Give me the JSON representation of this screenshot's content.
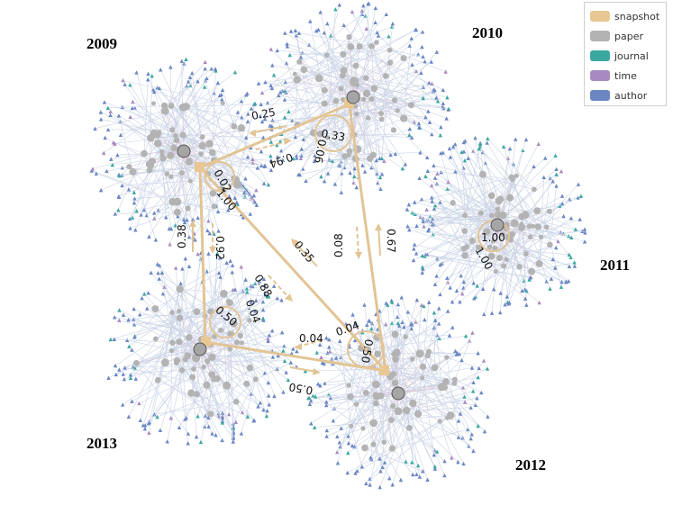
{
  "legend": {
    "items": [
      {
        "label": "snapshot",
        "color": "#e8c792"
      },
      {
        "label": "paper",
        "color": "#b3b3b3"
      },
      {
        "label": "journal",
        "color": "#3aa8a0"
      },
      {
        "label": "time",
        "color": "#a98ac0"
      },
      {
        "label": "author",
        "color": "#6a86c3"
      }
    ]
  },
  "colors": {
    "edge": "#e2c495",
    "spoke": "#c9d4e6",
    "paper": "#b3b3b3",
    "author": "#6a86c3",
    "journal": "#3aa8a0",
    "time": "#a98ac0",
    "hub": "#9a9a9a"
  },
  "years": [
    "2009",
    "2010",
    "2011",
    "2012",
    "2013"
  ],
  "edge_labels": {
    "a": "0.25",
    "b": "0.94",
    "c": "0.33",
    "d": "0.06",
    "e": "0.02",
    "f": "1.00",
    "g": "0.38",
    "h": "0.92",
    "i": "0.35",
    "j": "0.88",
    "k": "0.08",
    "l": "0.67",
    "m": "1.00",
    "n": "1.00",
    "o": "0.50",
    "p": "0.04",
    "q": "0.04",
    "r": "0.04",
    "s": "0.50",
    "t": "0.50"
  }
}
